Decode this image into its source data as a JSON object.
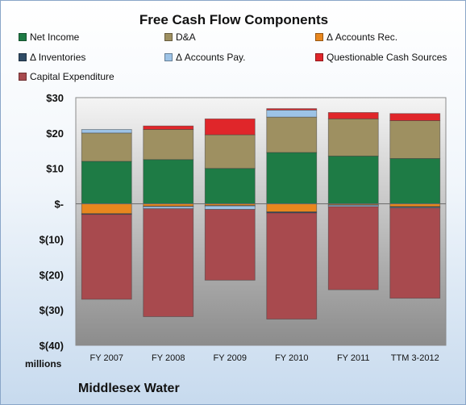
{
  "chart_data": {
    "type": "bar",
    "stacked": true,
    "title": "Free Cash Flow Components",
    "categories": [
      "FY 2007",
      "FY 2008",
      "FY 2009",
      "FY 2010",
      "FY 2011",
      "TTM 3-2012"
    ],
    "series": [
      {
        "name": "Net Income",
        "color": "#1e7b45",
        "values": [
          12,
          12.5,
          10,
          14.5,
          13.5,
          12.8
        ]
      },
      {
        "name": "D&A",
        "color": "#9e9061",
        "values": [
          8,
          8.5,
          9.5,
          10,
          10.5,
          10.7
        ]
      },
      {
        "name": "Δ Accounts Rec.",
        "color": "#e8871e",
        "values": [
          -2.8,
          -0.7,
          -0.5,
          -2.3,
          -0.3,
          -0.8
        ]
      },
      {
        "name": "Δ Inventories",
        "color": "#2f4b66",
        "values": [
          -0.2,
          -0.1,
          -0.1,
          -0.3,
          -0.1,
          -0.2
        ]
      },
      {
        "name": "Δ Accounts Pay.",
        "color": "#9dc3e6",
        "values": [
          1,
          -0.6,
          -1,
          2,
          -0.4,
          -0.2
        ]
      },
      {
        "name": "Questionable Cash Sources",
        "color": "#e0262a",
        "values": [
          0,
          1,
          4.5,
          0.4,
          1.8,
          2
        ]
      },
      {
        "name": "Capital Expenditure",
        "color": "#a84a4e",
        "values": [
          -24,
          -30.5,
          -20,
          -30,
          -23.5,
          -25.5
        ]
      }
    ],
    "ylim": [
      -40,
      30
    ],
    "yticks": [
      30,
      20,
      10,
      0,
      -10,
      -20,
      -30,
      -40
    ],
    "ytick_labels": [
      "$30",
      "$20",
      "$10",
      "$-",
      "$(10)",
      "$(20)",
      "$(30)",
      "$(40)"
    ],
    "units_label": "millions",
    "grid": false,
    "legend_position": "top"
  },
  "company_label": "Middlesex Water"
}
